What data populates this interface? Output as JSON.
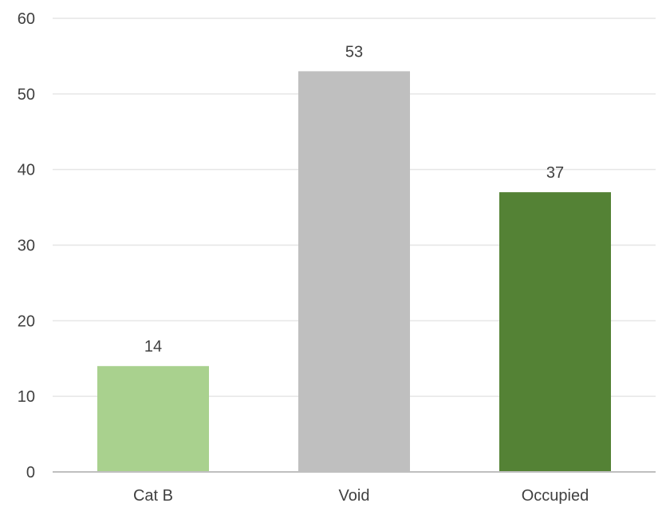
{
  "chart_data": {
    "type": "bar",
    "title": "",
    "xlabel": "",
    "ylabel": "",
    "categories": [
      "Cat B",
      "Void",
      "Occupied"
    ],
    "values": [
      14,
      53,
      37
    ],
    "data_labels": [
      "14",
      "53",
      "37"
    ],
    "colors": [
      "#a9d18e",
      "#bfbfbf",
      "#548235"
    ],
    "ylim": [
      0,
      60
    ],
    "yticks": [
      "0",
      "10",
      "20",
      "30",
      "40",
      "50",
      "60"
    ],
    "ytick_values": [
      0,
      10,
      20,
      30,
      40,
      50,
      60
    ],
    "grid": true,
    "legend": "none",
    "gridline_color": "#e6e6e6",
    "axis_color": "#bfbfbf"
  }
}
